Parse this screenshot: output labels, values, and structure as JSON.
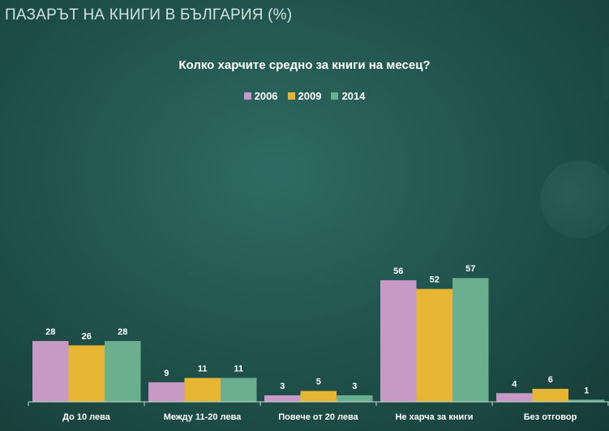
{
  "page": {
    "title": "ПАЗАРЪТ НА КНИГИ В БЪЛГАРИЯ (%)"
  },
  "colors": {
    "2006": "#c79ac6",
    "2009": "#e6b531",
    "2014": "#6ab08e",
    "axis": "#c9dcd8",
    "text": "#ffffff"
  },
  "chart_data": {
    "type": "bar",
    "title": "Колко харчите средно за книги на месец?",
    "categories": [
      "До 10 лева",
      "Между 11-20 лева",
      "Повече от 20 лева",
      "Не харча за книги",
      "Без отговор"
    ],
    "series": [
      {
        "name": "2006",
        "values": [
          28,
          9,
          3,
          56,
          4
        ]
      },
      {
        "name": "2009",
        "values": [
          26,
          11,
          5,
          52,
          6
        ]
      },
      {
        "name": "2014",
        "values": [
          28,
          11,
          3,
          57,
          1
        ]
      }
    ],
    "ylim": [
      0,
      60
    ],
    "grid": false,
    "legend_position": "top-center"
  }
}
